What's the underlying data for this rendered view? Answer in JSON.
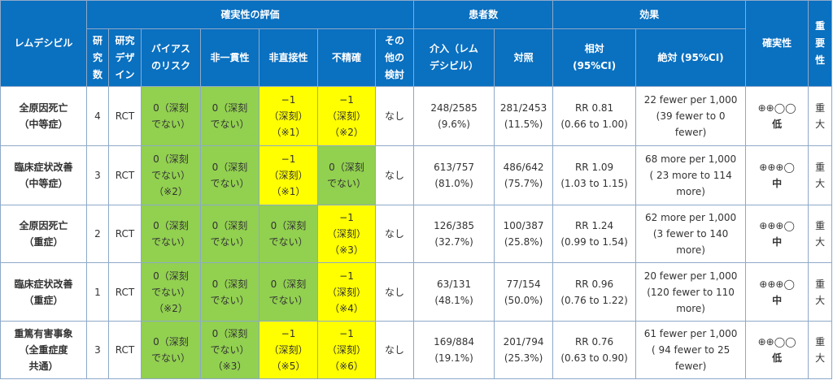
{
  "headers": {
    "drug": "レムデシビル",
    "certainty_group": "確実性の評価",
    "patients_group": "患者数",
    "effect_group": "効果",
    "certainty": "確実性",
    "importance": [
      "重",
      "要",
      "性"
    ],
    "studies": [
      "研",
      "究",
      "数"
    ],
    "design": [
      "研究",
      "デザ",
      "イン"
    ],
    "bias": [
      "バイアス",
      "のリスク"
    ],
    "inconsistency": "非一貫性",
    "indirectness": "非直接性",
    "imprecision": "不精確",
    "other": [
      "その",
      "他の",
      "検討"
    ],
    "intervention": [
      "介入（レム",
      "デシビル）"
    ],
    "control": "対照",
    "relative": [
      "相対",
      "(95%CI)"
    ],
    "absolute": "絶対 (95%CI)"
  },
  "rows": [
    {
      "outcome": [
        "全原因死亡",
        "（中等症）"
      ],
      "studies": "4",
      "design": "RCT",
      "bias": {
        "lines": [
          "0（深刻",
          "でない）"
        ],
        "color": "green"
      },
      "inconsistency": {
        "lines": [
          "0（深刻",
          "でない）"
        ],
        "color": "green"
      },
      "indirectness": {
        "lines": [
          "−1",
          "（深刻）",
          "（※1）"
        ],
        "color": "yellow"
      },
      "imprecision": {
        "lines": [
          "−1",
          "（深刻）",
          "（※2）"
        ],
        "color": "yellow"
      },
      "other": "なし",
      "intervention": [
        "248/2585",
        "(9.6%)"
      ],
      "control": [
        "281/2453",
        "(11.5%)"
      ],
      "relative": [
        "RR 0.81",
        "(0.66 to 1.00)"
      ],
      "absolute": [
        "22 fewer per 1,000",
        "(39 fewer to 0",
        "fewer)"
      ],
      "certainty_symbols": "⊕⊕◯◯",
      "certainty_word": "低",
      "importance": [
        "重",
        "大"
      ]
    },
    {
      "outcome": [
        "臨床症状改善",
        "（中等症）"
      ],
      "studies": "3",
      "design": "RCT",
      "bias": {
        "lines": [
          "0（深刻",
          "でない）",
          "（※2）"
        ],
        "color": "green"
      },
      "inconsistency": {
        "lines": [
          "0（深刻",
          "でない）"
        ],
        "color": "green"
      },
      "indirectness": {
        "lines": [
          "−1",
          "（深刻）",
          "（※1）"
        ],
        "color": "yellow"
      },
      "imprecision": {
        "lines": [
          "0（深刻",
          "でない）"
        ],
        "color": "green"
      },
      "other": "なし",
      "intervention": [
        "613/757",
        "(81.0%)"
      ],
      "control": [
        "486/642",
        "(75.7%)"
      ],
      "relative": [
        "RR 1.09",
        "(1.03 to 1.15)"
      ],
      "absolute": [
        "68 more per 1,000",
        "( 23 more to 114",
        "more)"
      ],
      "certainty_symbols": "⊕⊕⊕◯",
      "certainty_word": "中",
      "importance": [
        "重",
        "大"
      ]
    },
    {
      "outcome": [
        "全原因死亡",
        "（重症）"
      ],
      "studies": "2",
      "design": "RCT",
      "bias": {
        "lines": [
          "0（深刻",
          "でない）"
        ],
        "color": "green"
      },
      "inconsistency": {
        "lines": [
          "0（深刻",
          "でない）"
        ],
        "color": "green"
      },
      "indirectness": {
        "lines": [
          "0（深刻",
          "でない）"
        ],
        "color": "green"
      },
      "imprecision": {
        "lines": [
          "−1",
          "（深刻）",
          "（※3）"
        ],
        "color": "yellow"
      },
      "other": "なし",
      "intervention": [
        "126/385",
        "(32.7%)"
      ],
      "control": [
        "100/387",
        "(25.8%)"
      ],
      "relative": [
        "RR 1.24",
        "(0.99 to 1.54)"
      ],
      "absolute": [
        "62 more per 1,000",
        "(3 fewer to 140",
        "more)"
      ],
      "certainty_symbols": "⊕⊕⊕◯",
      "certainty_word": "中",
      "importance": [
        "重",
        "大"
      ]
    },
    {
      "outcome": [
        "臨床症状改善",
        "（重症）"
      ],
      "studies": "1",
      "design": "RCT",
      "bias": {
        "lines": [
          "0（深刻",
          "でない）",
          "（※2）"
        ],
        "color": "green"
      },
      "inconsistency": {
        "lines": [
          "0（深刻",
          "でない）"
        ],
        "color": "green"
      },
      "indirectness": {
        "lines": [
          "0（深刻",
          "でない）"
        ],
        "color": "green"
      },
      "imprecision": {
        "lines": [
          "−1",
          "（深刻）",
          "（※4）"
        ],
        "color": "yellow"
      },
      "other": "なし",
      "intervention": [
        "63/131",
        "(48.1%)"
      ],
      "control": [
        "77/154",
        "(50.0%)"
      ],
      "relative": [
        "RR 0.96",
        "(0.76 to 1.22)"
      ],
      "absolute": [
        "20 fewer per 1,000",
        "(120 fewer to 110",
        "more)"
      ],
      "certainty_symbols": "⊕⊕⊕◯",
      "certainty_word": "中",
      "importance": [
        "重",
        "大"
      ]
    },
    {
      "outcome": [
        "重篤有害事象",
        "（全重症度",
        "共通）"
      ],
      "studies": "3",
      "design": "RCT",
      "bias": {
        "lines": [
          "0（深刻",
          "でない）"
        ],
        "color": "green"
      },
      "inconsistency": {
        "lines": [
          "0（深刻",
          "でない）",
          "（※3）"
        ],
        "color": "green"
      },
      "indirectness": {
        "lines": [
          "−1",
          "（深刻）",
          "（※5）"
        ],
        "color": "yellow"
      },
      "imprecision": {
        "lines": [
          "−1",
          "（深刻）",
          "（※6）"
        ],
        "color": "yellow"
      },
      "other": "なし",
      "intervention": [
        "169/884",
        "(19.1%)"
      ],
      "control": [
        "201/794",
        "(25.3%)"
      ],
      "relative": [
        "RR 0.76",
        "(0.63 to 0.90)"
      ],
      "absolute": [
        "61 fewer per 1,000",
        "( 94 fewer to 25",
        "fewer)"
      ],
      "certainty_symbols": "⊕⊕◯◯",
      "certainty_word": "低",
      "importance": [
        "重",
        "大"
      ]
    }
  ],
  "colors": {
    "header": "#0a70c0",
    "green": "#92d050",
    "yellow": "#ffff00"
  }
}
